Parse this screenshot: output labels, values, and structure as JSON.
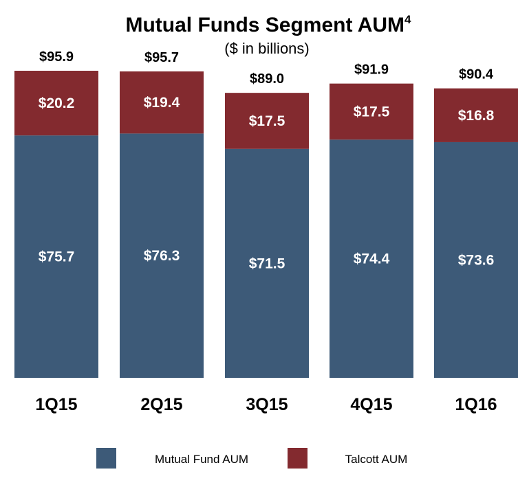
{
  "chart_data": {
    "type": "bar",
    "stacked": true,
    "title": "Mutual Funds Segment AUM",
    "title_superscript": "4",
    "subtitle": "($ in billions)",
    "categories": [
      "1Q15",
      "2Q15",
      "3Q15",
      "4Q15",
      "1Q16"
    ],
    "series": [
      {
        "name": "Mutual Fund AUM",
        "color": "#3d5a78",
        "values": [
          75.7,
          76.3,
          71.5,
          74.4,
          73.6
        ],
        "labels": [
          "$75.7",
          "$76.3",
          "$71.5",
          "$74.4",
          "$73.6"
        ]
      },
      {
        "name": "Talcott AUM",
        "color": "#832a2f",
        "values": [
          20.2,
          19.4,
          17.5,
          17.5,
          16.8
        ],
        "labels": [
          "$20.2",
          "$19.4",
          "$17.5",
          "$17.5",
          "$16.8"
        ]
      }
    ],
    "totals": [
      95.9,
      95.7,
      89.0,
      91.9,
      90.4
    ],
    "total_labels": [
      "$95.9",
      "$95.7",
      "$89.0",
      "$91.9",
      "$90.4"
    ],
    "ylim": [
      0,
      95.9
    ],
    "xlabel": "",
    "ylabel": "",
    "grid": false,
    "legend_position": "bottom"
  }
}
